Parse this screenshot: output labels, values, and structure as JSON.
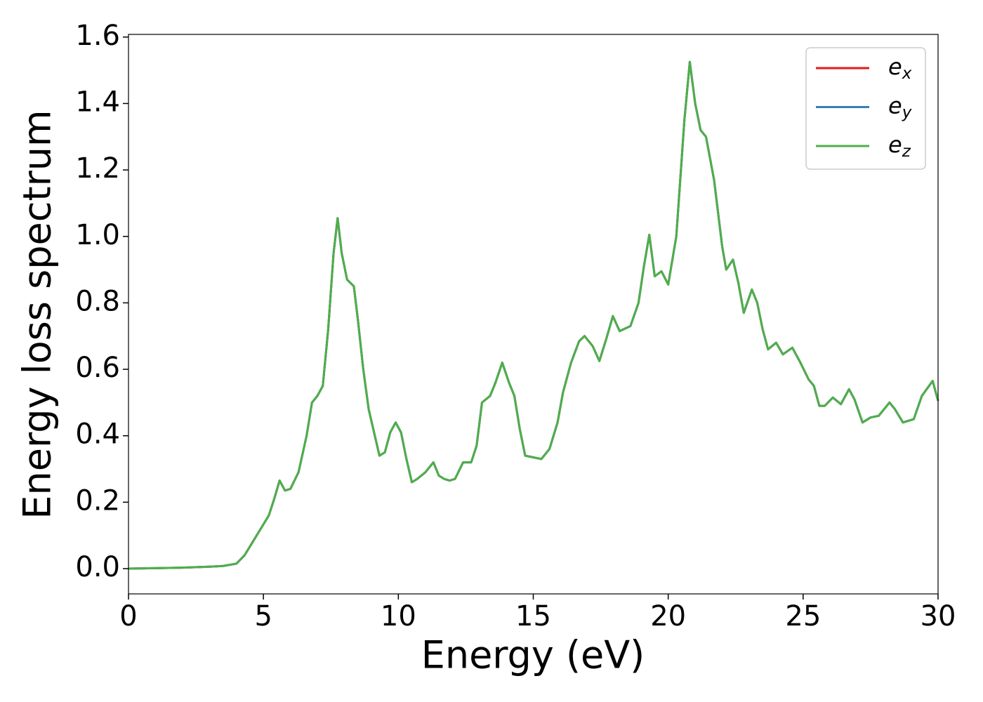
{
  "chart_data": {
    "type": "line",
    "x_label": "Energy (eV)",
    "y_label": "Energy loss spectrum",
    "xlim": [
      0,
      30
    ],
    "ylim": [
      -0.076,
      1.608
    ],
    "xticks": [
      0,
      5,
      10,
      15,
      20,
      25,
      30
    ],
    "yticks": [
      {
        "value": 0,
        "label": "0.0"
      },
      {
        "value": 0.2,
        "label": "0.2"
      },
      {
        "value": 0.4,
        "label": "0.4"
      },
      {
        "value": 0.6,
        "label": "0.6"
      },
      {
        "value": 0.8,
        "label": "0.8"
      },
      {
        "value": 1.0,
        "label": "1.0"
      },
      {
        "value": 1.2,
        "label": "1.2"
      },
      {
        "value": 1.4,
        "label": "1.4"
      },
      {
        "value": 1.6,
        "label": "1.6"
      }
    ],
    "legend": "upper right",
    "x": [
      0,
      2,
      3,
      3.5,
      4,
      4.3,
      4.6,
      4.9,
      5.2,
      5.4,
      5.6,
      5.8,
      6.0,
      6.3,
      6.6,
      6.8,
      7.0,
      7.2,
      7.4,
      7.6,
      7.75,
      7.9,
      8.1,
      8.35,
      8.5,
      8.7,
      8.9,
      9.1,
      9.3,
      9.5,
      9.7,
      9.9,
      10.1,
      10.3,
      10.5,
      10.7,
      11.0,
      11.3,
      11.5,
      11.7,
      11.9,
      12.1,
      12.4,
      12.7,
      12.9,
      13.1,
      13.4,
      13.6,
      13.85,
      14.1,
      14.3,
      14.5,
      14.7,
      15.0,
      15.3,
      15.6,
      15.9,
      16.1,
      16.4,
      16.7,
      16.9,
      17.2,
      17.45,
      17.7,
      17.95,
      18.2,
      18.6,
      18.9,
      19.1,
      19.3,
      19.5,
      19.75,
      20.0,
      20.3,
      20.6,
      20.8,
      21.0,
      21.2,
      21.4,
      21.7,
      22.0,
      22.15,
      22.4,
      22.6,
      22.8,
      23.1,
      23.3,
      23.5,
      23.7,
      24.0,
      24.25,
      24.6,
      24.9,
      25.2,
      25.4,
      25.6,
      25.8,
      26.1,
      26.4,
      26.7,
      26.9,
      27.2,
      27.5,
      27.8,
      28.2,
      28.4,
      28.7,
      29.1,
      29.4,
      29.8,
      30.0
    ],
    "series": [
      {
        "name": "ex",
        "color": "#e41a1c",
        "values": [
          0,
          0.003,
          0.006,
          0.008,
          0.015,
          0.04,
          0.08,
          0.12,
          0.16,
          0.21,
          0.265,
          0.235,
          0.24,
          0.29,
          0.4,
          0.5,
          0.52,
          0.55,
          0.72,
          0.95,
          1.055,
          0.95,
          0.87,
          0.85,
          0.75,
          0.6,
          0.48,
          0.41,
          0.34,
          0.35,
          0.41,
          0.44,
          0.41,
          0.33,
          0.26,
          0.27,
          0.29,
          0.32,
          0.28,
          0.27,
          0.265,
          0.27,
          0.32,
          0.32,
          0.37,
          0.5,
          0.52,
          0.56,
          0.62,
          0.56,
          0.52,
          0.42,
          0.34,
          0.335,
          0.33,
          0.36,
          0.44,
          0.53,
          0.62,
          0.685,
          0.7,
          0.67,
          0.625,
          0.69,
          0.76,
          0.715,
          0.73,
          0.8,
          0.91,
          1.005,
          0.88,
          0.895,
          0.855,
          1.0,
          1.35,
          1.525,
          1.4,
          1.32,
          1.3,
          1.17,
          0.97,
          0.9,
          0.93,
          0.86,
          0.77,
          0.84,
          0.8,
          0.72,
          0.66,
          0.68,
          0.645,
          0.665,
          0.62,
          0.57,
          0.55,
          0.49,
          0.49,
          0.515,
          0.495,
          0.54,
          0.51,
          0.44,
          0.455,
          0.46,
          0.5,
          0.48,
          0.44,
          0.45,
          0.52,
          0.565,
          0.505
        ]
      },
      {
        "name": "ey",
        "color": "#377eb8",
        "values": [
          0,
          0.003,
          0.006,
          0.008,
          0.015,
          0.04,
          0.08,
          0.12,
          0.16,
          0.21,
          0.265,
          0.235,
          0.24,
          0.29,
          0.4,
          0.5,
          0.52,
          0.55,
          0.72,
          0.95,
          1.055,
          0.95,
          0.87,
          0.85,
          0.75,
          0.6,
          0.48,
          0.41,
          0.34,
          0.35,
          0.41,
          0.44,
          0.41,
          0.33,
          0.26,
          0.27,
          0.29,
          0.32,
          0.28,
          0.27,
          0.265,
          0.27,
          0.32,
          0.32,
          0.37,
          0.5,
          0.52,
          0.56,
          0.62,
          0.56,
          0.52,
          0.42,
          0.34,
          0.335,
          0.33,
          0.36,
          0.44,
          0.53,
          0.62,
          0.685,
          0.7,
          0.67,
          0.625,
          0.69,
          0.76,
          0.715,
          0.73,
          0.8,
          0.91,
          1.005,
          0.88,
          0.895,
          0.855,
          1.0,
          1.35,
          1.525,
          1.4,
          1.32,
          1.3,
          1.17,
          0.97,
          0.9,
          0.93,
          0.86,
          0.77,
          0.84,
          0.8,
          0.72,
          0.66,
          0.68,
          0.645,
          0.665,
          0.62,
          0.57,
          0.55,
          0.49,
          0.49,
          0.515,
          0.495,
          0.54,
          0.51,
          0.44,
          0.455,
          0.46,
          0.5,
          0.48,
          0.44,
          0.45,
          0.52,
          0.565,
          0.505
        ]
      },
      {
        "name": "ez",
        "color": "#4daf4a",
        "values": [
          0,
          0.003,
          0.006,
          0.008,
          0.015,
          0.04,
          0.08,
          0.12,
          0.16,
          0.21,
          0.265,
          0.235,
          0.24,
          0.29,
          0.4,
          0.5,
          0.52,
          0.55,
          0.72,
          0.95,
          1.055,
          0.95,
          0.87,
          0.85,
          0.75,
          0.6,
          0.48,
          0.41,
          0.34,
          0.35,
          0.41,
          0.44,
          0.41,
          0.33,
          0.26,
          0.27,
          0.29,
          0.32,
          0.28,
          0.27,
          0.265,
          0.27,
          0.32,
          0.32,
          0.37,
          0.5,
          0.52,
          0.56,
          0.62,
          0.56,
          0.52,
          0.42,
          0.34,
          0.335,
          0.33,
          0.36,
          0.44,
          0.53,
          0.62,
          0.685,
          0.7,
          0.67,
          0.625,
          0.69,
          0.76,
          0.715,
          0.73,
          0.8,
          0.91,
          1.005,
          0.88,
          0.895,
          0.855,
          1.0,
          1.35,
          1.525,
          1.4,
          1.32,
          1.3,
          1.17,
          0.97,
          0.9,
          0.93,
          0.86,
          0.77,
          0.84,
          0.8,
          0.72,
          0.66,
          0.68,
          0.645,
          0.665,
          0.62,
          0.57,
          0.55,
          0.49,
          0.49,
          0.515,
          0.495,
          0.54,
          0.51,
          0.44,
          0.455,
          0.46,
          0.5,
          0.48,
          0.44,
          0.45,
          0.52,
          0.565,
          0.505
        ]
      }
    ]
  }
}
